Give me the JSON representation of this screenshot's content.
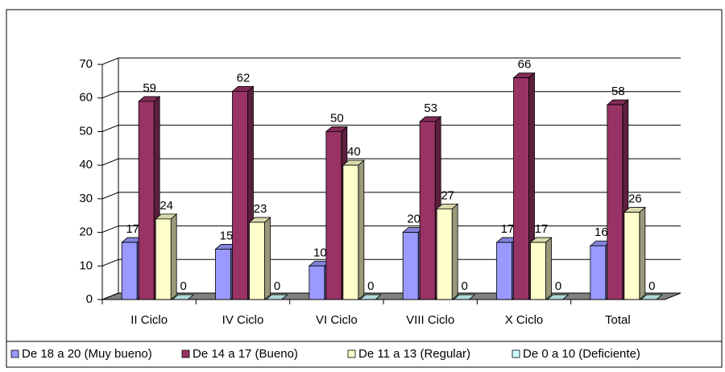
{
  "chart_data": {
    "type": "bar3d",
    "categories": [
      "II Ciclo",
      "IV Ciclo",
      "VI Ciclo",
      "VIII Ciclo",
      "X Ciclo",
      "Total"
    ],
    "series": [
      {
        "name": "De 18 a 20 (Muy bueno)",
        "color": "#9999ff",
        "values": [
          17,
          15,
          10,
          20,
          17,
          16
        ]
      },
      {
        "name": "De 14 a 17 (Bueno)",
        "color": "#993366",
        "values": [
          59,
          62,
          50,
          53,
          66,
          58
        ]
      },
      {
        "name": "De 11 a 13 (Regular)",
        "color": "#ffffcc",
        "values": [
          24,
          23,
          40,
          27,
          17,
          26
        ]
      },
      {
        "name": "De 0 a 10 (Deficiente)",
        "color": "#ccffff",
        "values": [
          0,
          0,
          0,
          0,
          0,
          0
        ]
      }
    ],
    "ylim": [
      0,
      70
    ],
    "yticks": [
      0,
      10,
      20,
      30,
      40,
      50,
      60,
      70
    ],
    "grid": true,
    "legend": "bottom"
  }
}
